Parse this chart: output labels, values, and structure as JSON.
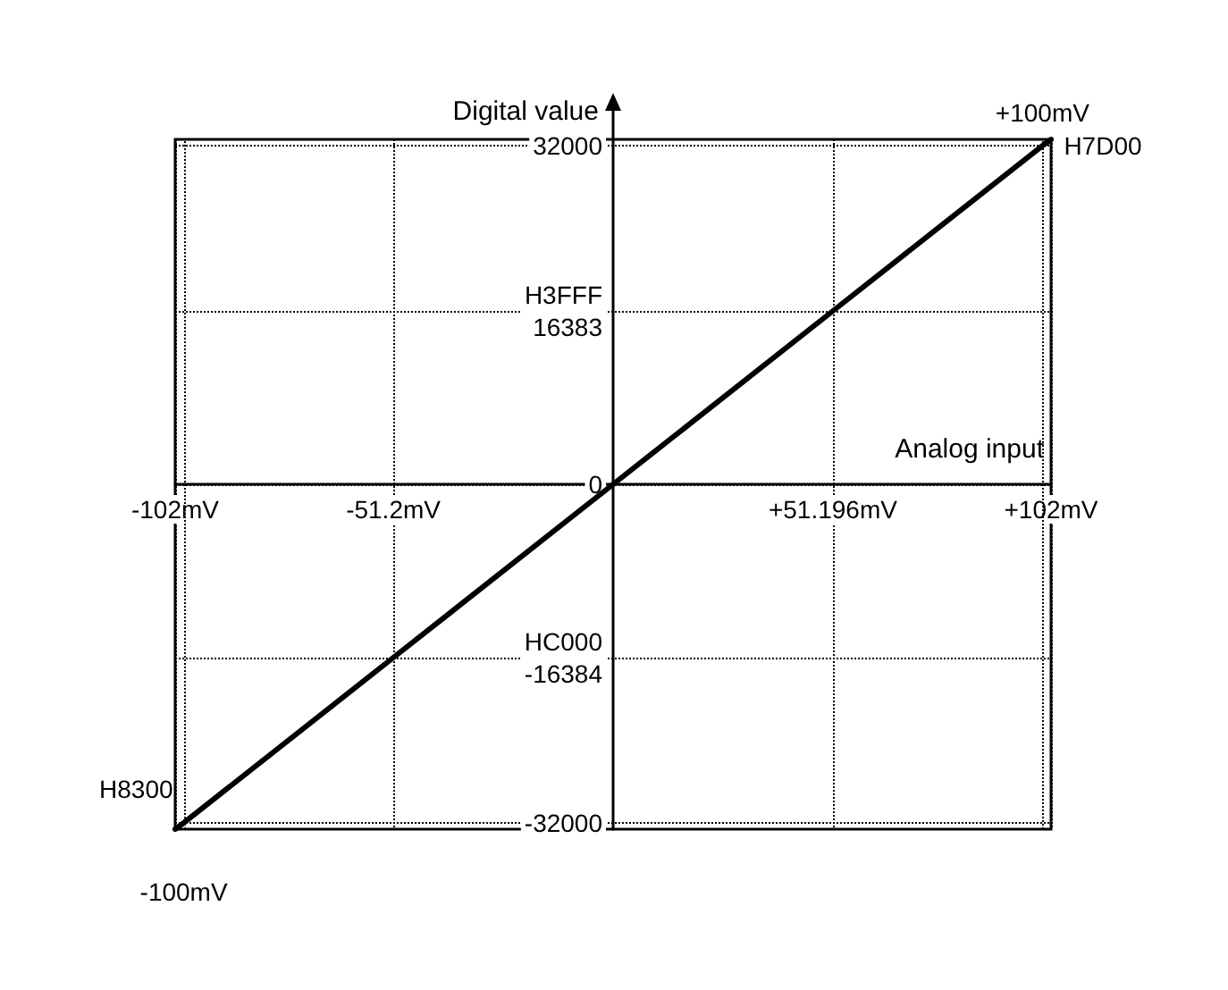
{
  "chart_data": {
    "type": "line",
    "xlabel": "Analog input",
    "ylabel": "Digital value",
    "x": [
      -102,
      -100,
      -51.2,
      0,
      51.196,
      100,
      102
    ],
    "values": [
      -32600,
      -32000,
      -16384,
      0,
      16383,
      32000,
      32600
    ],
    "color": "#000000",
    "marker": "none",
    "line_style": "solid",
    "grid": true,
    "xlim": [
      -102,
      102
    ],
    "ylim": [
      -32600,
      32600
    ],
    "xticks": [
      {
        "value": -102,
        "label": "-102mV"
      },
      {
        "value": -51.2,
        "label": "-51.2mV"
      },
      {
        "value": 51.196,
        "label": "+51.196mV"
      },
      {
        "value": 102,
        "label": "+102mV"
      }
    ],
    "yticks": [
      -32000,
      {
        "value": -16384,
        "label": "HC000\n-16384"
      },
      0,
      {
        "value": 16383,
        "label": "H3FFF\n16383"
      },
      32000
    ],
    "ref_lines": [
      {
        "axis": "x",
        "value": -100,
        "label": "-100mV"
      },
      {
        "axis": "x",
        "value": 100,
        "label": "+100mV"
      }
    ],
    "annotations": [
      {
        "text": "H7D00",
        "x": 100,
        "y": 32000
      },
      {
        "text": "H8300",
        "x": -100,
        "y": -32000
      }
    ]
  }
}
